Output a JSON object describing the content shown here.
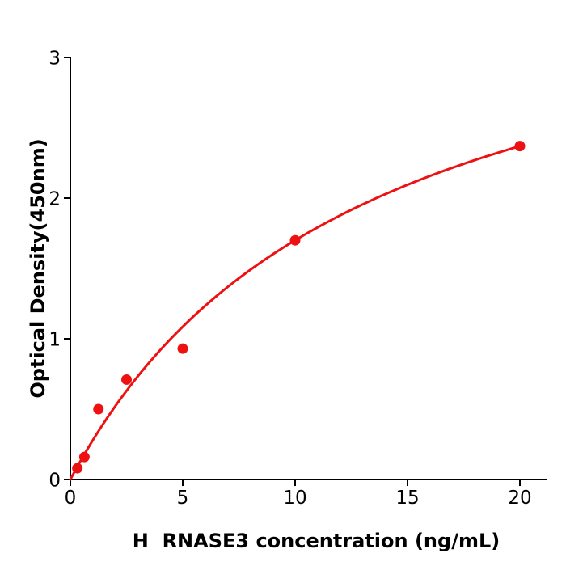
{
  "figure": {
    "background": "#ffffff"
  },
  "chart_data": {
    "type": "scatter",
    "title": "",
    "xlabel": "H  RNASE3 concentration (ng/mL)",
    "ylabel": "Optical Density(450nm)",
    "x": [
      0.3125,
      0.625,
      1.25,
      2.5,
      5,
      10,
      20
    ],
    "y": [
      0.08,
      0.16,
      0.5,
      0.71,
      0.93,
      1.7,
      2.37
    ],
    "x_ticks": [
      0,
      5,
      10,
      15,
      20
    ],
    "y_ticks": [
      0,
      1,
      2,
      3
    ],
    "xlim": [
      0,
      21.2
    ],
    "ylim": [
      0,
      3
    ],
    "grid": false,
    "legend": "none",
    "fit_curve": {
      "model": "michaelis_menten",
      "vmax": 3.91,
      "km": 13.0,
      "x_start": 0,
      "x_end": 20
    },
    "colors": {
      "series": "#ee1111",
      "axis": "#000000",
      "background": "#ffffff"
    },
    "marker_radius": 6.5,
    "curve_stroke_width": 3
  }
}
